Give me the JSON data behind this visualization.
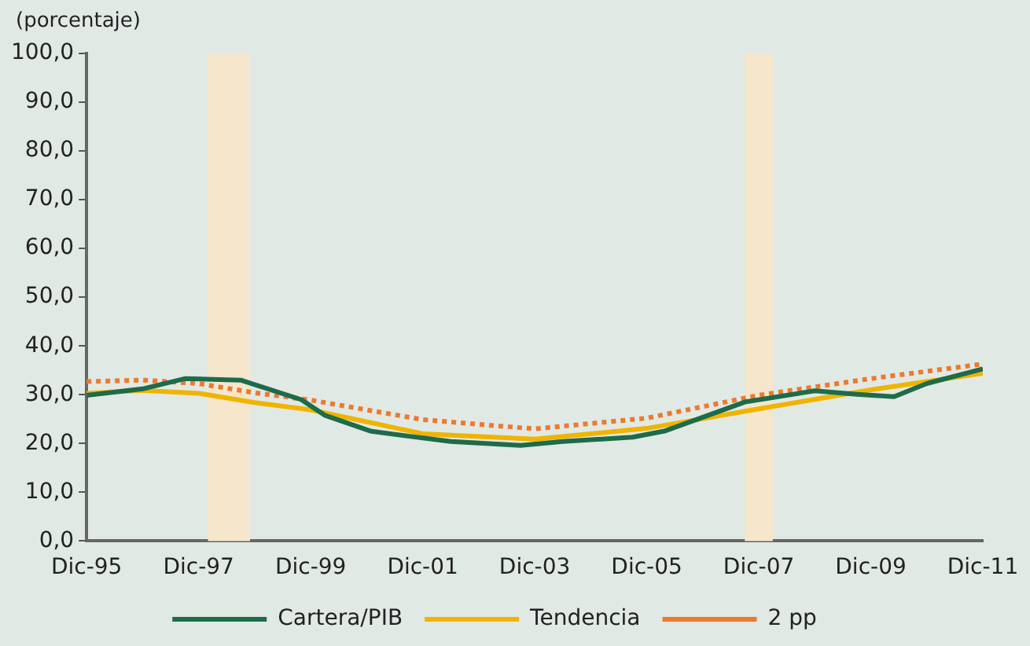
{
  "chart_data": {
    "type": "line",
    "ylabel": "(porcentaje)",
    "xlim": [
      "1995-12",
      "2011-12"
    ],
    "xticks": [
      {
        "value": "1995-12",
        "label": "Dic-95"
      },
      {
        "value": "1997-12",
        "label": "Dic-97"
      },
      {
        "value": "1999-12",
        "label": "Dic-99"
      },
      {
        "value": "2001-12",
        "label": "Dic-01"
      },
      {
        "value": "2003-12",
        "label": "Dic-03"
      },
      {
        "value": "2005-12",
        "label": "Dic-05"
      },
      {
        "value": "2007-12",
        "label": "Dic-07"
      },
      {
        "value": "2009-12",
        "label": "Dic-09"
      },
      {
        "value": "2011-12",
        "label": "Dic-11"
      }
    ],
    "ylim": [
      0,
      100
    ],
    "yticks": [
      {
        "value": 0,
        "label": "0,0"
      },
      {
        "value": 10,
        "label": "10,0"
      },
      {
        "value": 20,
        "label": "20,0"
      },
      {
        "value": 30,
        "label": "30,0"
      },
      {
        "value": 40,
        "label": "40,0"
      },
      {
        "value": 50,
        "label": "50,0"
      },
      {
        "value": 60,
        "label": "60,0"
      },
      {
        "value": 70,
        "label": "70,0"
      },
      {
        "value": 80,
        "label": "80,0"
      },
      {
        "value": 90,
        "label": "90,0"
      },
      {
        "value": 100,
        "label": "100,0"
      }
    ],
    "series": [
      {
        "name": "Cartera/PIB",
        "color": "#1e6b4a",
        "line_style": "solid",
        "x": [
          "1995-12",
          "1996-12",
          "1997-09",
          "1998-09",
          "1999-10",
          "2000-03",
          "2001-01",
          "2002-06",
          "2003-09",
          "2004-06",
          "2005-09",
          "2006-04",
          "2007-09",
          "2008-12",
          "2009-09",
          "2010-05",
          "2010-12",
          "2011-12"
        ],
        "values": [
          29.9,
          31.2,
          33.3,
          33.0,
          29.0,
          25.8,
          22.5,
          20.4,
          19.6,
          20.4,
          21.3,
          22.6,
          28.5,
          30.8,
          30.1,
          29.6,
          32.3,
          35.3
        ]
      },
      {
        "name": "Tendencia",
        "color": "#f0b400",
        "line_style": "solid",
        "x": [
          "1995-12",
          "1996-12",
          "1997-12",
          "1998-12",
          "1999-12",
          "2001-12",
          "2003-12",
          "2005-12",
          "2007-12",
          "2009-12",
          "2011-12"
        ],
        "values": [
          30.3,
          30.9,
          30.3,
          28.4,
          26.9,
          22.0,
          20.9,
          23.1,
          27.1,
          31.0,
          34.4
        ]
      },
      {
        "name": "2 pp",
        "color": "#ec7a2e",
        "line_style": "dotted",
        "x": [
          "1995-12",
          "1996-12",
          "1997-12",
          "1998-12",
          "1999-12",
          "2001-12",
          "2003-12",
          "2005-12",
          "2007-12",
          "2009-12",
          "2011-12"
        ],
        "values": [
          32.7,
          33.0,
          32.3,
          30.4,
          28.9,
          24.9,
          23.0,
          25.2,
          29.9,
          33.3,
          36.3
        ]
      }
    ],
    "bands": [
      {
        "axis": "x",
        "from": "1998-02",
        "to": "1998-11",
        "color": "#f5e6cc"
      },
      {
        "axis": "x",
        "from": "2007-09",
        "to": "2008-03",
        "color": "#f5e6cc"
      }
    ],
    "grid": false,
    "legend": "bottom",
    "marker": "none"
  }
}
